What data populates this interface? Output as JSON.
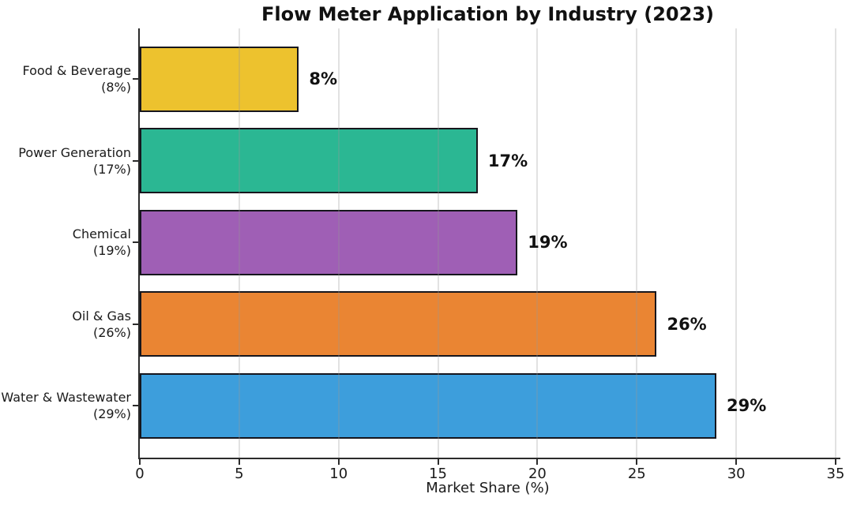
{
  "chart_data": {
    "type": "bar",
    "orientation": "horizontal",
    "title": "Flow Meter Application by Industry (2023)",
    "xlabel": "Market Share (%)",
    "ylabel": "",
    "xlim": [
      0,
      35
    ],
    "xticks": [
      0,
      5,
      10,
      15,
      20,
      25,
      30,
      35
    ],
    "grid": true,
    "legend": false,
    "categories": [
      "Food & Beverage",
      "Power Generation",
      "Chemical",
      "Oil & Gas",
      "Water & Wastewater"
    ],
    "ytick_labels": [
      [
        "Food & Beverage",
        "(8%)"
      ],
      [
        "Power Generation",
        "(17%)"
      ],
      [
        "Chemical",
        "(19%)"
      ],
      [
        "Oil & Gas",
        "(26%)"
      ],
      [
        "Water & Wastewater",
        "(29%)"
      ]
    ],
    "values": [
      8,
      17,
      19,
      26,
      29
    ],
    "value_labels": [
      "8%",
      "17%",
      "19%",
      "26%",
      "29%"
    ],
    "colors": {
      "bars": [
        "#EDC22E",
        "#2BB793",
        "#9F5FB5",
        "#EA8533",
        "#3D9EDC"
      ],
      "bar_edge": "#16161d",
      "grid": "rgba(150,150,150,0.28)",
      "axis": "#2b2b2b",
      "text": "#1a1a1a",
      "background": "#ffffff"
    }
  }
}
